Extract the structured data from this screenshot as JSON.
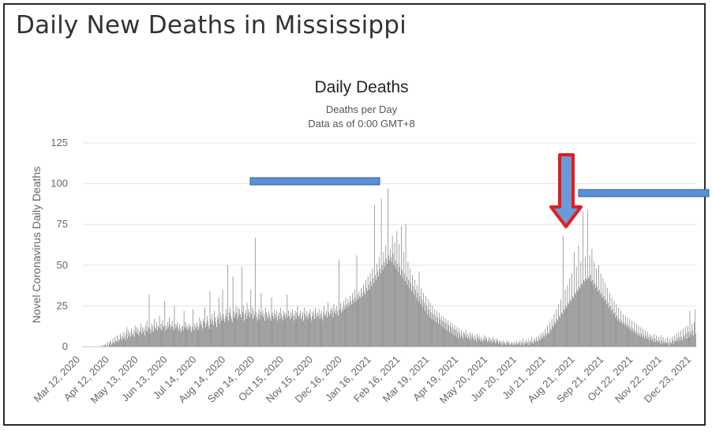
{
  "page": {
    "title": "Daily New Deaths in Mississippi"
  },
  "chart_data": {
    "type": "bar",
    "title": "Daily Deaths",
    "subtitle": "Deaths per Day",
    "subtitle2": "Data as of 0:00 GMT+8",
    "xlabel": "",
    "ylabel": "Novel Coronavirus Daily Deaths",
    "ylim": [
      0,
      125
    ],
    "yticks": [
      0,
      25,
      50,
      75,
      100,
      125
    ],
    "grid": true,
    "date_range": [
      "2020-03-12",
      "2022-01-05"
    ],
    "x_tick_labels": [
      "Mar 12, 2020",
      "Apr 12, 2020",
      "May 13, 2020",
      "Jun 13, 2020",
      "Jul 14, 2020",
      "Aug 14, 2020",
      "Sep 14, 2020",
      "Oct 15, 2020",
      "Nov 15, 2020",
      "Dec 16, 2020",
      "Jan 16, 2021",
      "Feb 16, 2021",
      "Mar 19, 2021",
      "Apr 19, 2021",
      "May 20, 2021",
      "Jun 20, 2021",
      "Jul 21, 2021",
      "Aug 21, 2021",
      "Sep 21, 2021",
      "Oct 22, 2021",
      "Nov 22, 2021",
      "Dec 23, 2021"
    ],
    "key_points": [
      {
        "date": "Aug 10, 2020",
        "value": 67
      },
      {
        "date": "Nov 7, 2020",
        "value": 53
      },
      {
        "date": "Jan 10, 2021",
        "value": 97
      },
      {
        "date": "Jan 2, 2021",
        "value": 91
      },
      {
        "date": "Dec 27, 2020",
        "value": 87
      },
      {
        "date": "Aug 15, 2021",
        "value": 68
      },
      {
        "date": "Aug 30, 2021",
        "value": 83
      },
      {
        "date": "Sep 3, 2021",
        "value": 84
      }
    ],
    "series": [
      {
        "values": [
          0,
          0,
          0,
          0,
          0,
          0,
          0,
          0,
          0,
          1,
          0,
          1,
          0,
          1,
          2,
          0,
          1,
          3,
          0,
          2,
          3,
          4,
          1,
          2,
          5,
          3,
          2,
          6,
          4,
          3,
          7,
          3,
          5,
          4,
          8,
          6,
          4,
          7,
          5,
          9,
          6,
          4,
          8,
          12,
          5,
          10,
          7,
          9,
          6,
          11,
          8,
          7,
          10,
          6,
          13,
          9,
          12,
          8,
          11,
          7,
          9,
          10,
          14,
          8,
          12,
          9,
          11,
          7,
          13,
          10,
          16,
          9,
          12,
          32,
          11,
          8,
          14,
          10,
          13,
          9,
          17,
          12,
          11,
          15,
          10,
          13,
          12,
          19,
          11,
          14,
          10,
          16,
          13,
          12,
          28,
          10,
          13,
          11,
          15,
          12,
          18,
          14,
          11,
          13,
          16,
          12,
          10,
          25,
          14,
          11,
          13,
          15,
          12,
          10,
          14,
          11,
          9,
          12,
          13,
          10,
          22,
          12,
          15,
          11,
          13,
          10,
          12,
          14,
          11,
          13,
          9,
          12,
          23,
          10,
          14,
          12,
          11,
          15,
          13,
          10,
          12,
          18,
          14,
          16,
          13,
          11,
          17,
          15,
          24,
          12,
          14,
          19,
          16,
          13,
          11,
          34,
          17,
          14,
          20,
          16,
          13,
          22,
          18,
          15,
          12,
          19,
          17,
          30,
          14,
          21,
          18,
          16,
          35,
          20,
          17,
          15,
          19,
          23,
          18,
          50,
          16,
          21,
          24,
          19,
          17,
          15,
          43,
          22,
          18,
          20,
          25,
          21,
          17,
          24,
          19,
          23,
          20,
          18,
          49,
          21,
          25,
          16,
          20,
          22,
          17,
          27,
          19,
          23,
          21,
          18,
          35,
          20,
          24,
          17,
          22,
          19,
          67,
          21,
          18,
          16,
          20,
          23,
          17,
          21,
          33,
          19,
          22,
          18,
          20,
          16,
          24,
          21,
          19,
          17,
          22,
          20,
          18,
          16,
          30,
          21,
          19,
          17,
          23,
          20,
          18,
          22,
          16,
          19,
          21,
          17,
          24,
          20,
          18,
          16,
          22,
          19,
          21,
          17,
          20,
          32,
          18,
          22,
          19,
          17,
          21,
          18,
          23,
          20,
          16,
          19,
          22,
          17,
          21,
          25,
          19,
          18,
          20,
          22,
          17,
          19,
          21,
          16,
          24,
          20,
          18,
          22,
          19,
          17,
          21,
          20,
          23,
          18,
          16,
          21,
          19,
          22,
          17,
          24,
          20,
          18,
          21,
          19,
          23,
          17,
          20,
          22,
          18,
          16,
          21,
          25,
          19,
          20,
          22,
          18,
          27,
          21,
          19,
          23,
          20,
          24,
          22,
          18,
          26,
          21,
          23,
          20,
          25,
          22,
          19,
          53,
          23,
          27,
          21,
          24,
          22,
          28,
          25,
          23,
          30,
          26,
          24,
          29,
          27,
          25,
          31,
          28,
          26,
          33,
          29,
          27,
          35,
          30,
          28,
          56,
          32,
          29,
          34,
          31,
          30,
          36,
          33,
          31,
          38,
          34,
          32,
          41,
          36,
          34,
          43,
          38,
          35,
          45,
          40,
          37,
          48,
          42,
          39,
          87,
          44,
          41,
          51,
          46,
          43,
          55,
          48,
          45,
          91,
          50,
          47,
          58,
          52,
          49,
          62,
          54,
          51,
          97,
          56,
          53,
          60,
          55,
          52,
          68,
          57,
          50,
          64,
          53,
          48,
          71,
          51,
          46,
          63,
          49,
          44,
          74,
          47,
          42,
          58,
          45,
          40,
          75,
          43,
          38,
          52,
          41,
          36,
          48,
          39,
          34,
          44,
          37,
          32,
          41,
          35,
          30,
          38,
          33,
          28,
          46,
          31,
          26,
          36,
          29,
          24,
          33,
          27,
          22,
          31,
          25,
          20,
          29,
          23,
          18,
          27,
          21,
          17,
          25,
          20,
          16,
          23,
          19,
          15,
          22,
          18,
          14,
          21,
          17,
          13,
          19,
          16,
          12,
          18,
          15,
          11,
          17,
          14,
          10,
          16,
          13,
          9,
          15,
          12,
          8,
          14,
          11,
          7,
          13,
          10,
          6,
          12,
          9,
          5,
          11,
          8,
          6,
          10,
          7,
          5,
          9,
          8,
          6,
          10,
          7,
          5,
          8,
          6,
          4,
          9,
          7,
          5,
          8,
          6,
          4,
          7,
          5,
          3,
          8,
          6,
          4,
          7,
          5,
          3,
          6,
          4,
          3,
          5,
          7,
          4,
          6,
          5,
          3,
          4,
          6,
          3,
          5,
          4,
          2,
          6,
          3,
          5,
          4,
          2,
          3,
          5,
          4,
          2,
          3,
          4,
          2,
          3,
          1,
          4,
          2,
          3,
          2,
          1,
          3,
          4,
          2,
          3,
          2,
          1,
          2,
          3,
          1,
          2,
          3,
          1,
          2,
          4,
          2,
          1,
          3,
          2,
          4,
          1,
          3,
          2,
          5,
          1,
          3,
          2,
          4,
          3,
          2,
          5,
          1,
          3,
          4,
          2,
          6,
          3,
          2,
          4,
          5,
          3,
          6,
          4,
          3,
          7,
          5,
          4,
          8,
          6,
          5,
          9,
          7,
          6,
          11,
          8,
          7,
          13,
          9,
          8,
          15,
          11,
          10,
          17,
          13,
          12,
          20,
          15,
          14,
          23,
          17,
          16,
          26,
          19,
          18,
          29,
          21,
          20,
          68,
          23,
          22,
          35,
          25,
          24,
          38,
          27,
          26,
          42,
          29,
          28,
          45,
          31,
          30,
          58,
          33,
          32,
          49,
          35,
          34,
          62,
          37,
          36,
          52,
          39,
          38,
          83,
          41,
          40,
          55,
          42,
          41,
          84,
          43,
          42,
          56,
          44,
          40,
          60,
          41,
          38,
          52,
          39,
          36,
          48,
          37,
          34,
          50,
          35,
          32,
          45,
          33,
          30,
          42,
          31,
          28,
          39,
          29,
          26,
          36,
          27,
          24,
          33,
          25,
          22,
          30,
          23,
          20,
          28,
          21,
          18,
          26,
          19,
          16,
          24,
          17,
          15,
          22,
          16,
          14,
          20,
          15,
          13,
          19,
          14,
          12,
          18,
          13,
          11,
          17,
          12,
          10,
          16,
          11,
          9,
          15,
          10,
          8,
          14,
          9,
          7,
          13,
          8,
          6,
          12,
          8,
          6,
          11,
          7,
          5,
          10,
          7,
          5,
          9,
          6,
          4,
          8,
          6,
          4,
          7,
          5,
          3,
          8,
          5,
          3,
          7,
          4,
          3,
          6,
          4,
          2,
          7,
          4,
          2,
          6,
          3,
          2,
          5,
          3,
          2,
          6,
          3,
          1,
          5,
          3,
          2,
          6,
          4,
          2,
          7,
          4,
          3,
          8,
          5,
          3,
          9,
          6,
          4,
          10,
          6,
          4,
          11,
          7,
          5,
          12,
          8,
          5,
          13,
          9,
          6,
          22,
          9,
          7,
          14,
          10,
          7,
          15,
          23,
          8
        ]
      }
    ]
  }
}
